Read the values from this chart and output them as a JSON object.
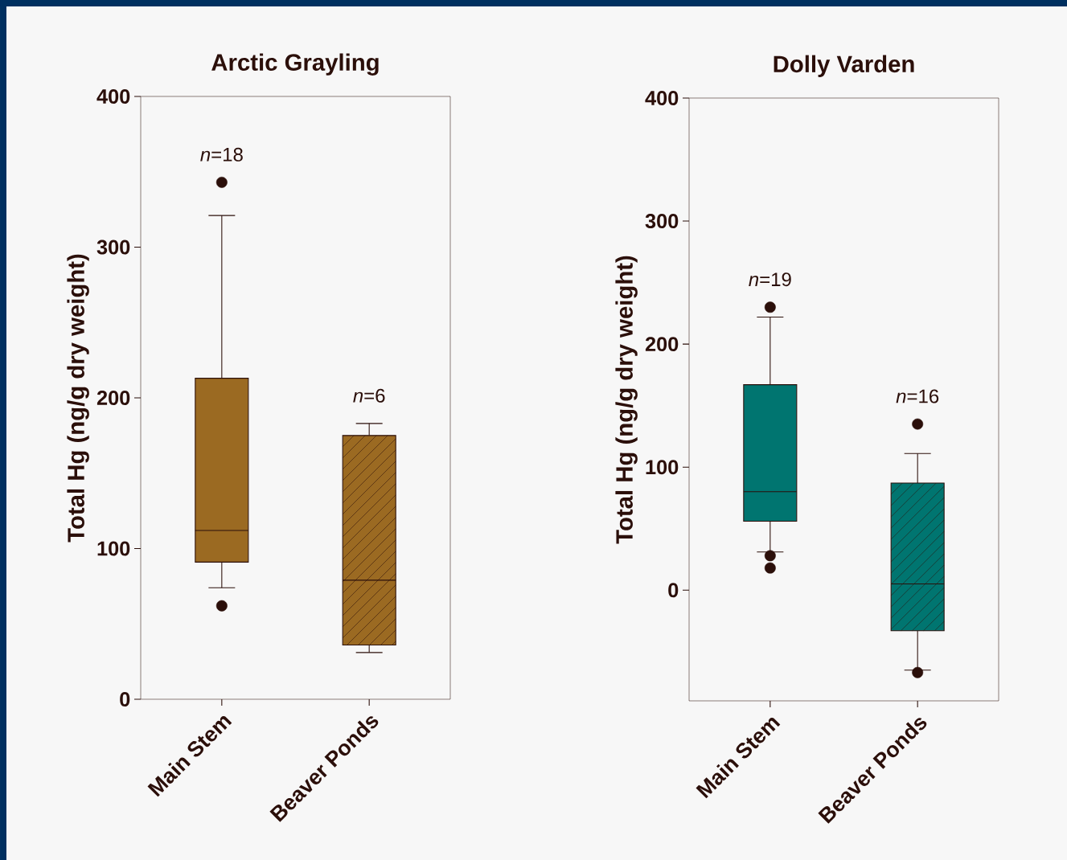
{
  "chart_data": [
    {
      "type": "box",
      "title": "Arctic Grayling",
      "ylabel": "Total Hg (ng/g dry weight)",
      "categories": [
        "Main Stem",
        "Beaver Ponds"
      ],
      "ylim": [
        0,
        400
      ],
      "yticks": [
        0,
        100,
        200,
        300,
        400
      ],
      "grid": false,
      "series": [
        {
          "color": "#9b6a22",
          "boxes": [
            {
              "low": 74,
              "q1": 91,
              "median": 112,
              "q3": 213,
              "high": 321,
              "outliers": [
                343,
                62
              ]
            },
            {
              "low": 31,
              "q1": 36,
              "median": 79,
              "q3": 175,
              "high": 183
            }
          ]
        }
      ],
      "annotations": [
        "*n*=18",
        "*n*=6"
      ]
    },
    {
      "type": "box",
      "title": "Dolly Varden",
      "ylabel": "Total Hg (ng/g dry weight)",
      "categories": [
        "Main Stem",
        "Beaver Ponds"
      ],
      "ylim": [
        -90,
        400
      ],
      "yticks": [
        0,
        100,
        200,
        300,
        400
      ],
      "grid": false,
      "series": [
        {
          "color": "#007570",
          "boxes": [
            {
              "low": 31,
              "q1": 56,
              "median": 80,
              "q3": 167,
              "high": 222,
              "outliers": [
                230,
                28,
                18
              ]
            },
            {
              "low": -65,
              "q1": -33,
              "median": 5,
              "q3": 87,
              "high": 111,
              "outliers": [
                135,
                -67
              ]
            }
          ]
        }
      ],
      "annotations": [
        "*n*=19",
        "*n*=16"
      ]
    }
  ]
}
